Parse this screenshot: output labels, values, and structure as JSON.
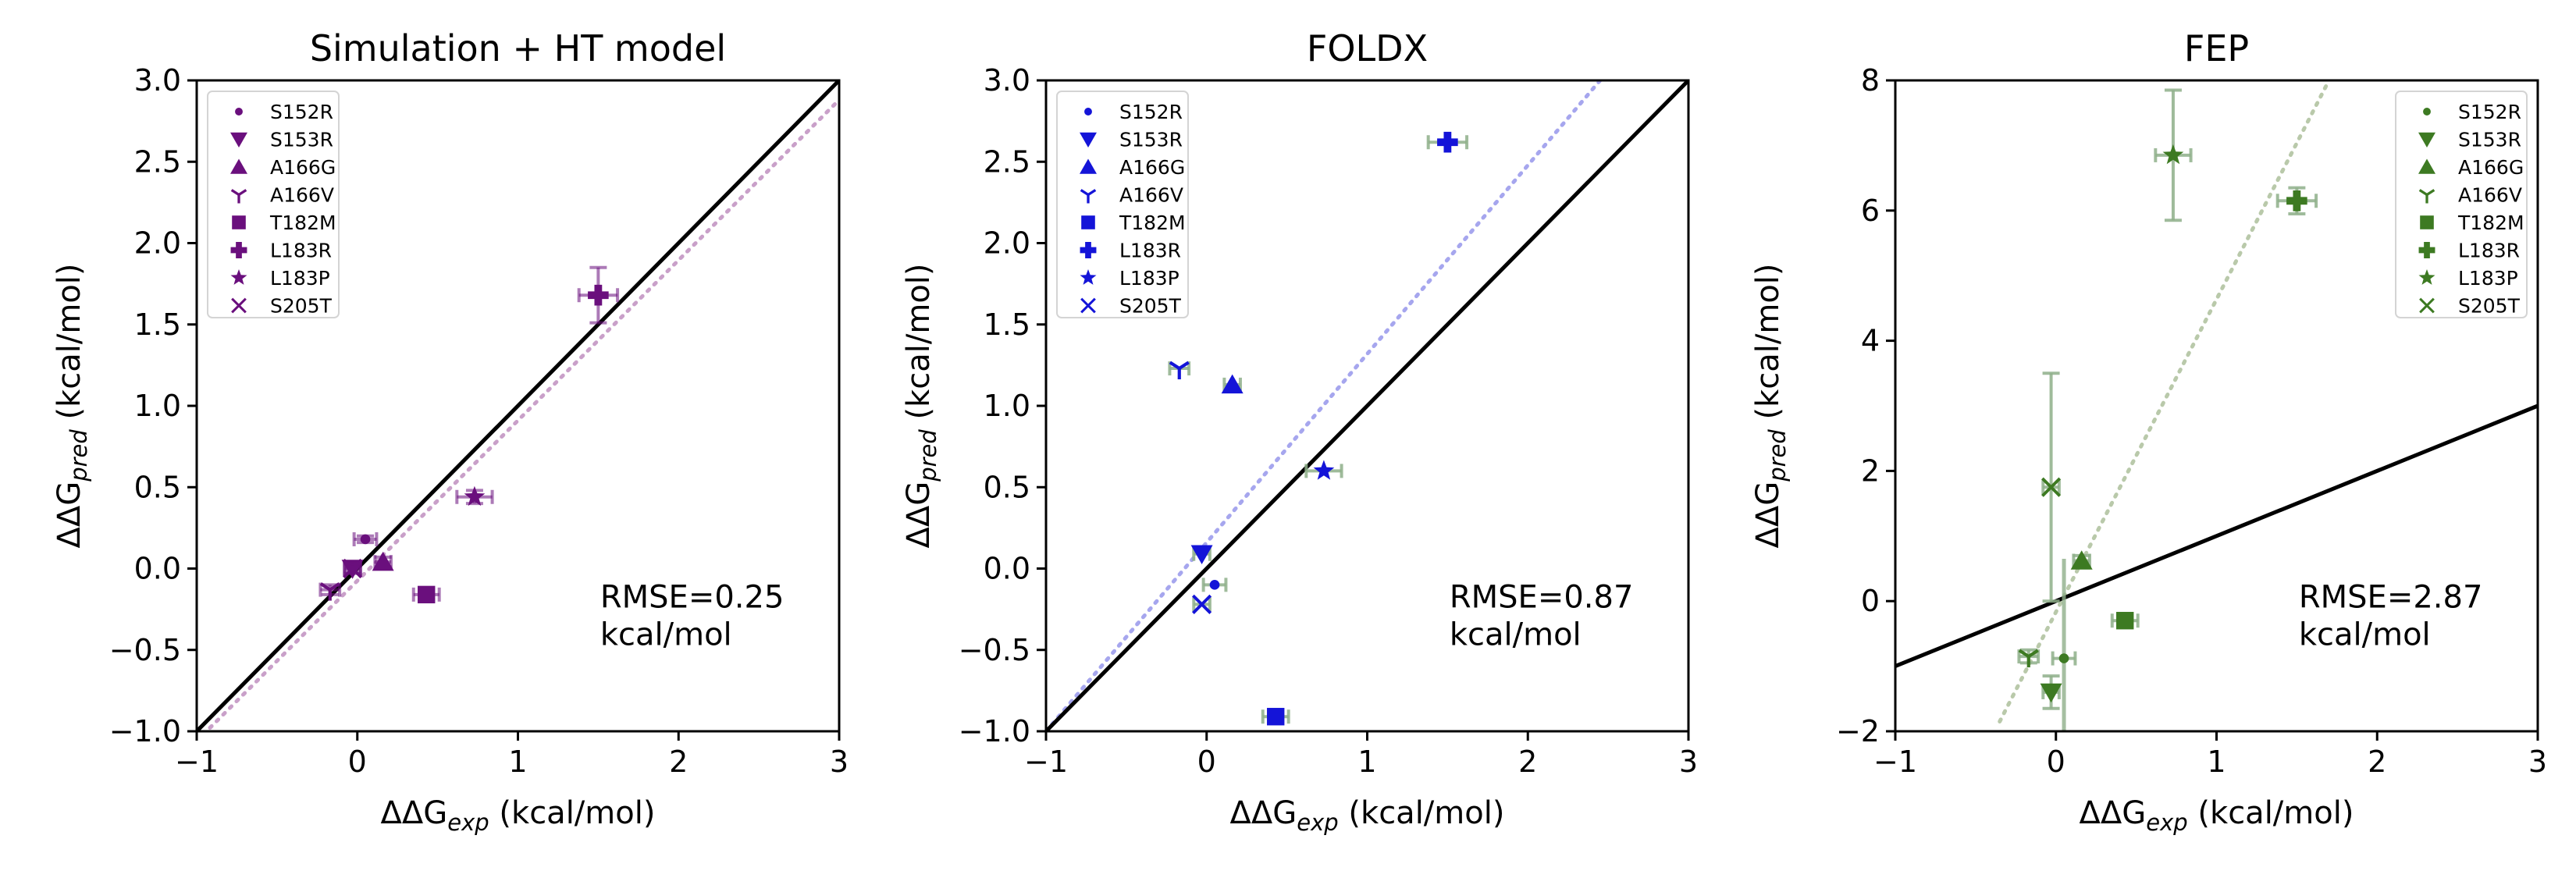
{
  "chart_data": [
    {
      "type": "scatter",
      "title": "Simulation + HT model",
      "xlabel_base": "ΔΔG",
      "xlabel_sub": "exp",
      "xlabel_unit": " (kcal/mol)",
      "ylabel_base": "ΔΔG",
      "ylabel_sub": "pred",
      "ylabel_unit": " (kcal/mol)",
      "xlim": [
        -1,
        3
      ],
      "ylim": [
        -1,
        3
      ],
      "xticks": [
        "−1",
        "0",
        "1",
        "2",
        "3"
      ],
      "yticks": [
        "−1.0",
        "−0.5",
        "0.0",
        "0.5",
        "1.0",
        "1.5",
        "2.0",
        "2.5",
        "3.0"
      ],
      "xtick_values": [
        -1,
        0,
        1,
        2,
        3
      ],
      "ytick_values": [
        -1,
        -0.5,
        0,
        0.5,
        1,
        1.5,
        2,
        2.5,
        3
      ],
      "color": "#6a0f7d",
      "fit_color": "#c9a0c9",
      "identity_line": [
        [
          -1,
          -1
        ],
        [
          3,
          3
        ]
      ],
      "fit_line": [
        [
          -1,
          -1.06
        ],
        [
          3,
          2.88
        ]
      ],
      "rmse": [
        "RMSE=0.25",
        "kcal/mol"
      ],
      "legend_position": "upper-left",
      "points": [
        {
          "name": "S152R",
          "marker": "circle",
          "x": 0.05,
          "y": 0.18,
          "xerr": 0.07,
          "yerr": 0.02
        },
        {
          "name": "S153R",
          "marker": "triangle-down",
          "x": -0.03,
          "y": 0.0,
          "xerr": 0.05,
          "yerr": 0.02
        },
        {
          "name": "A166G",
          "marker": "triangle-up",
          "x": 0.16,
          "y": 0.04,
          "xerr": 0.05,
          "yerr": 0.03
        },
        {
          "name": "A166V",
          "marker": "tri",
          "x": -0.17,
          "y": -0.13,
          "xerr": 0.06,
          "yerr": 0.03
        },
        {
          "name": "T182M",
          "marker": "square",
          "x": 0.43,
          "y": -0.16,
          "xerr": 0.08,
          "yerr": 0.03
        },
        {
          "name": "L183R",
          "marker": "plus",
          "x": 1.5,
          "y": 1.68,
          "xerr": 0.12,
          "yerr": 0.17
        },
        {
          "name": "L183P",
          "marker": "star",
          "x": 0.73,
          "y": 0.44,
          "xerr": 0.11,
          "yerr": 0.04
        },
        {
          "name": "S205T",
          "marker": "x",
          "x": -0.03,
          "y": 0.0,
          "xerr": 0.05,
          "yerr": 0.03
        }
      ]
    },
    {
      "type": "scatter",
      "title": "FOLDX",
      "xlabel_base": "ΔΔG",
      "xlabel_sub": "exp",
      "xlabel_unit": " (kcal/mol)",
      "ylabel_base": "ΔΔG",
      "ylabel_sub": "pred",
      "ylabel_unit": " (kcal/mol)",
      "xlim": [
        -1,
        3
      ],
      "ylim": [
        -1,
        3
      ],
      "xticks": [
        "−1",
        "0",
        "1",
        "2",
        "3"
      ],
      "yticks": [
        "−1.0",
        "−0.5",
        "0.0",
        "0.5",
        "1.0",
        "1.5",
        "2.0",
        "2.5",
        "3.0"
      ],
      "xtick_values": [
        -1,
        0,
        1,
        2,
        3
      ],
      "ytick_values": [
        -1,
        -0.5,
        0,
        0.5,
        1,
        1.5,
        2,
        2.5,
        3
      ],
      "color": "#1414d8",
      "errcolor": "#8fb08a",
      "fit_color": "#a6a6ee",
      "identity_line": [
        [
          -1,
          -1
        ],
        [
          3,
          3
        ]
      ],
      "fit_line": [
        [
          -1,
          -1.0
        ],
        [
          2.45,
          3.0
        ]
      ],
      "rmse": [
        "RMSE=0.87",
        "kcal/mol"
      ],
      "legend_position": "upper-left",
      "points": [
        {
          "name": "S152R",
          "marker": "circle",
          "x": 0.05,
          "y": -0.1,
          "xerr": 0.07,
          "yerr": 0.0
        },
        {
          "name": "S153R",
          "marker": "triangle-down",
          "x": -0.03,
          "y": 0.09,
          "xerr": 0.05,
          "yerr": 0.0
        },
        {
          "name": "A166G",
          "marker": "triangle-up",
          "x": 0.16,
          "y": 1.13,
          "xerr": 0.05,
          "yerr": 0.0
        },
        {
          "name": "A166V",
          "marker": "tri",
          "x": -0.17,
          "y": 1.23,
          "xerr": 0.06,
          "yerr": 0.0
        },
        {
          "name": "T182M",
          "marker": "square",
          "x": 0.43,
          "y": -0.91,
          "xerr": 0.08,
          "yerr": 0.0
        },
        {
          "name": "L183R",
          "marker": "plus",
          "x": 1.5,
          "y": 2.62,
          "xerr": 0.12,
          "yerr": 0.0
        },
        {
          "name": "L183P",
          "marker": "star",
          "x": 0.73,
          "y": 0.6,
          "xerr": 0.11,
          "yerr": 0.0
        },
        {
          "name": "S205T",
          "marker": "x",
          "x": -0.03,
          "y": -0.22,
          "xerr": 0.05,
          "yerr": 0.0
        }
      ]
    },
    {
      "type": "scatter",
      "title": "FEP",
      "xlabel_base": "ΔΔG",
      "xlabel_sub": "exp",
      "xlabel_unit": " (kcal/mol)",
      "ylabel_base": "ΔΔG",
      "ylabel_sub": "pred",
      "ylabel_unit": " (kcal/mol)",
      "xlim": [
        -1,
        3
      ],
      "ylim": [
        -2,
        8
      ],
      "xticks": [
        "−1",
        "0",
        "1",
        "2",
        "3"
      ],
      "yticks": [
        "−2",
        "0",
        "2",
        "4",
        "6",
        "8"
      ],
      "xtick_values": [
        -1,
        0,
        1,
        2,
        3
      ],
      "ytick_values": [
        -2,
        0,
        2,
        4,
        6,
        8
      ],
      "color": "#3d7a22",
      "errcolor": "#8fb08a",
      "fit_color": "#b9c9aa",
      "identity_line": [
        [
          -1,
          -1
        ],
        [
          3,
          3
        ]
      ],
      "fit_line": [
        [
          -0.35,
          -1.85
        ],
        [
          1.7,
          8.0
        ]
      ],
      "rmse": [
        "RMSE=2.87",
        "kcal/mol"
      ],
      "legend_position": "upper-right",
      "points": [
        {
          "name": "S152R",
          "marker": "circle",
          "x": 0.05,
          "y": -0.88,
          "xerr": 0.07,
          "yerr": 0.0
        },
        {
          "name": "S153R",
          "marker": "triangle-down",
          "x": -0.03,
          "y": -1.4,
          "xerr": 0.05,
          "yerr": 0.25
        },
        {
          "name": "A166G",
          "marker": "triangle-up",
          "x": 0.16,
          "y": 0.62,
          "xerr": 0.05,
          "yerr": 0.08
        },
        {
          "name": "A166V",
          "marker": "tri",
          "x": -0.17,
          "y": -0.85,
          "xerr": 0.06,
          "yerr": 0.1
        },
        {
          "name": "T182M",
          "marker": "square",
          "x": 0.43,
          "y": -0.3,
          "xerr": 0.08,
          "yerr": 0.05
        },
        {
          "name": "L183R",
          "marker": "plus",
          "x": 1.5,
          "y": 6.15,
          "xerr": 0.12,
          "yerr": 0.2
        },
        {
          "name": "L183P",
          "marker": "star",
          "x": 0.73,
          "y": 6.85,
          "xerr": 0.11,
          "yerr": 1.0
        },
        {
          "name": "S205T",
          "marker": "x",
          "x": -0.03,
          "y": 1.75,
          "xerr": 0.05,
          "yerr": 1.75
        }
      ],
      "extra_vline": {
        "x": 0.05,
        "y0": -2.0,
        "y1": 0.65
      }
    }
  ]
}
